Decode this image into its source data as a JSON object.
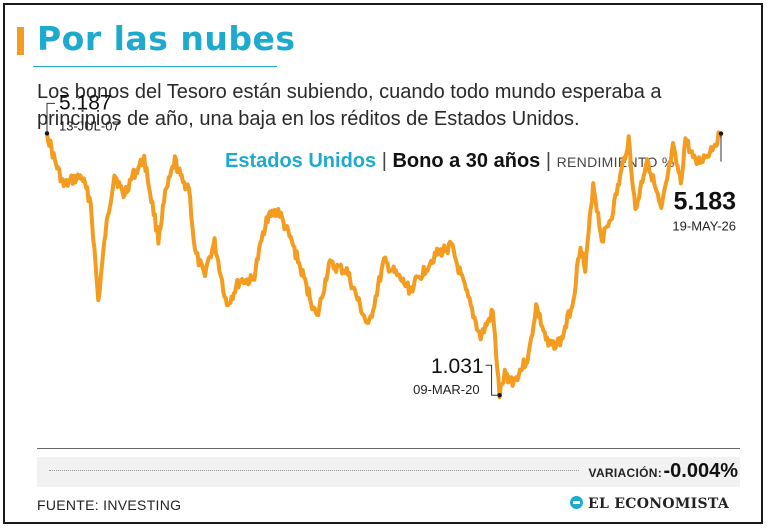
{
  "header": {
    "title": "Por las nubes",
    "subtitle": "Los bonos del Tesoro están subiendo, cuando todo mundo esperaba a principios de año, una baja en los réditos de Estados Unidos."
  },
  "chart_header": {
    "country": "Estados Unidos",
    "separator": "|",
    "bond": "Bono a 30 años",
    "unit": "RENDIMIENTO %"
  },
  "chart_data": {
    "type": "line",
    "title": "Estados Unidos | Bono a 30 años",
    "ylabel": "RENDIMIENTO %",
    "xlabel": "",
    "x_range": [
      "13-JUL-07",
      "19-MAY-26"
    ],
    "ylim": [
      0.4,
      5.7
    ],
    "grid": false,
    "color": "#f39c1f",
    "series": [
      {
        "points": [
          [
            "2007-07-13",
            5.187
          ],
          [
            "2007-10-01",
            4.75
          ],
          [
            "2008-01-01",
            4.35
          ],
          [
            "2008-04-01",
            4.45
          ],
          [
            "2008-07-01",
            4.5
          ],
          [
            "2008-10-01",
            4.1
          ],
          [
            "2008-12-18",
            2.52
          ],
          [
            "2009-03-01",
            3.6
          ],
          [
            "2009-06-01",
            4.55
          ],
          [
            "2009-09-01",
            4.2
          ],
          [
            "2009-12-01",
            4.5
          ],
          [
            "2010-04-01",
            4.78
          ],
          [
            "2010-08-24",
            3.52
          ],
          [
            "2010-11-01",
            4.2
          ],
          [
            "2011-02-09",
            4.75
          ],
          [
            "2011-05-01",
            4.4
          ],
          [
            "2011-07-01",
            4.35
          ],
          [
            "2011-09-01",
            3.3
          ],
          [
            "2011-12-01",
            2.95
          ],
          [
            "2012-03-20",
            3.45
          ],
          [
            "2012-07-24",
            2.45
          ],
          [
            "2012-12-01",
            2.85
          ],
          [
            "2013-04-18",
            2.85
          ],
          [
            "2013-09-01",
            3.85
          ],
          [
            "2013-12-31",
            3.96
          ],
          [
            "2014-06-01",
            3.4
          ],
          [
            "2015-01-30",
            2.25
          ],
          [
            "2015-06-01",
            3.1
          ],
          [
            "2015-12-01",
            3.0
          ],
          [
            "2016-07-08",
            2.1
          ],
          [
            "2016-12-15",
            3.15
          ],
          [
            "2017-09-08",
            2.7
          ],
          [
            "2018-05-17",
            3.25
          ],
          [
            "2018-11-01",
            3.4
          ],
          [
            "2019-08-28",
            1.95
          ],
          [
            "2019-12-31",
            2.35
          ],
          [
            "2020-03-09",
            1.031
          ],
          [
            "2020-05-01",
            1.35
          ],
          [
            "2020-08-01",
            1.25
          ],
          [
            "2020-12-31",
            1.65
          ],
          [
            "2021-03-18",
            2.45
          ],
          [
            "2021-07-20",
            1.8
          ],
          [
            "2021-12-01",
            1.9
          ],
          [
            "2022-04-01",
            2.55
          ],
          [
            "2022-06-14",
            3.45
          ],
          [
            "2022-08-01",
            3.0
          ],
          [
            "2022-10-21",
            4.4
          ],
          [
            "2023-01-18",
            3.5
          ],
          [
            "2023-05-01",
            3.9
          ],
          [
            "2023-10-19",
            5.1
          ],
          [
            "2023-12-27",
            3.95
          ],
          [
            "2024-04-25",
            4.8
          ],
          [
            "2024-09-16",
            3.95
          ],
          [
            "2025-01-14",
            4.95
          ],
          [
            "2025-04-04",
            4.4
          ],
          [
            "2025-05-21",
            5.1
          ],
          [
            "2025-09-01",
            4.7
          ],
          [
            "2026-01-01",
            4.85
          ],
          [
            "2026-05-19",
            5.183
          ]
        ]
      }
    ],
    "annotations": [
      {
        "value": "5.187",
        "date": "13-JUL-07"
      },
      {
        "value": "1.031",
        "date": "09-MAR-20"
      },
      {
        "value": "5.183",
        "date": "19-MAY-26"
      }
    ]
  },
  "variation": {
    "label": "VARIACIÓN:",
    "value": "-0.004%"
  },
  "footer": {
    "source": "FUENTE: INVESTING",
    "brand": "EL ECONOMISTA"
  }
}
